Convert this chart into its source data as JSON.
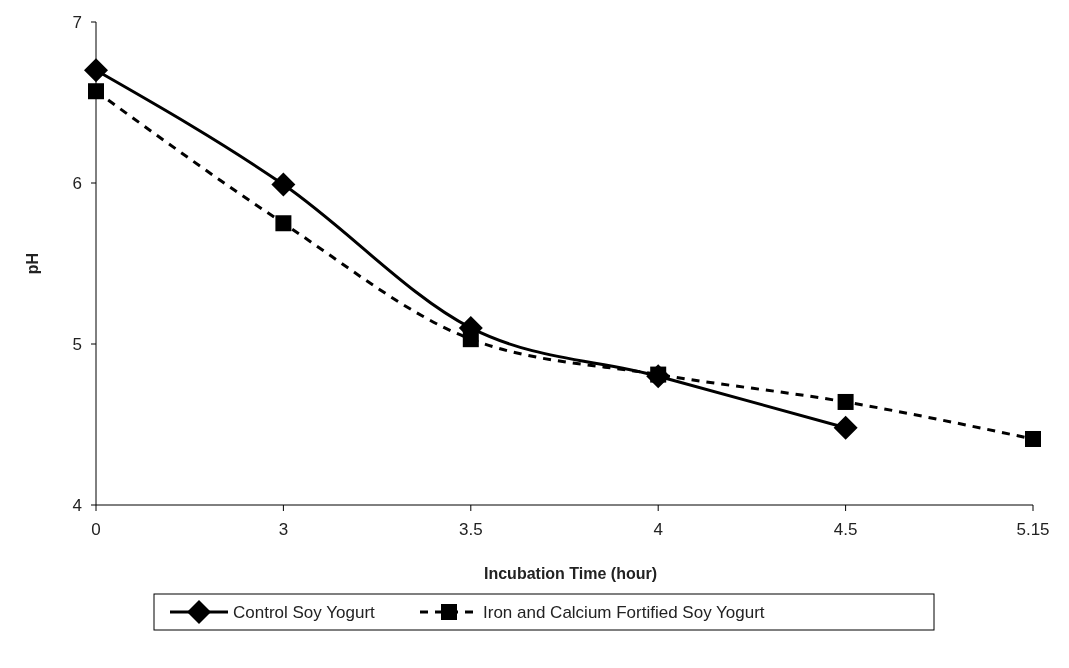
{
  "chart_data": {
    "type": "line",
    "xlabel": "Incubation Time (hour)",
    "ylabel": "pH",
    "categories": [
      "0",
      "3",
      "3.5",
      "4",
      "4.5",
      "5.15"
    ],
    "ylim": [
      4,
      7
    ],
    "yticks": [
      4,
      5,
      6,
      7
    ],
    "grid": false,
    "legend": "bottom",
    "series": [
      {
        "name": "Control Soy Yogurt",
        "color": "#000000",
        "marker": "diamond",
        "line_style": "solid",
        "values": [
          6.7,
          5.99,
          5.1,
          4.8,
          4.48,
          null
        ]
      },
      {
        "name": "Iron and Calcium Fortified Soy Yogurt",
        "color": "#000000",
        "marker": "square",
        "line_style": "dashed",
        "values": [
          6.57,
          5.75,
          5.03,
          4.81,
          4.64,
          4.41
        ]
      }
    ]
  }
}
